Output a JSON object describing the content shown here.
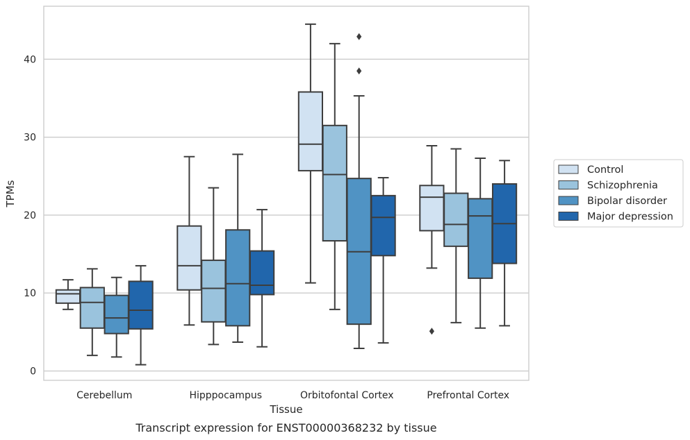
{
  "caption": "Transcript expression for ENST00000368232 by tissue",
  "chart_data": {
    "type": "box",
    "xlabel": "Tissue",
    "ylabel": "TPMs",
    "ylim": [
      -1.2,
      46.8
    ],
    "yticks": [
      0,
      10,
      20,
      30,
      40
    ],
    "grid": "horizontal",
    "legend_position": "right",
    "categories": [
      "Cerebellum",
      "Hipppocampus",
      "Orbitofontal Cortex",
      "Prefrontal Cortex"
    ],
    "series": [
      {
        "name": "Control",
        "color": "#d1e2f2",
        "boxes": [
          {
            "whisker_low": 7.9,
            "q1": 8.7,
            "median": 9.9,
            "q3": 10.4,
            "whisker_high": 11.7,
            "outliers": []
          },
          {
            "whisker_low": 5.9,
            "q1": 10.4,
            "median": 13.5,
            "q3": 18.6,
            "whisker_high": 27.5,
            "outliers": []
          },
          {
            "whisker_low": 11.3,
            "q1": 25.7,
            "median": 29.1,
            "q3": 35.8,
            "whisker_high": 44.5,
            "outliers": []
          },
          {
            "whisker_low": 13.2,
            "q1": 18.0,
            "median": 22.3,
            "q3": 23.8,
            "whisker_high": 28.9,
            "outliers": [
              5.1
            ]
          }
        ]
      },
      {
        "name": "Schizophrenia",
        "color": "#9ac3dd",
        "boxes": [
          {
            "whisker_low": 2.0,
            "q1": 5.5,
            "median": 8.8,
            "q3": 10.7,
            "whisker_high": 13.1,
            "outliers": []
          },
          {
            "whisker_low": 3.4,
            "q1": 6.3,
            "median": 10.6,
            "q3": 14.2,
            "whisker_high": 23.5,
            "outliers": []
          },
          {
            "whisker_low": 7.9,
            "q1": 16.7,
            "median": 25.2,
            "q3": 31.5,
            "whisker_high": 42.0,
            "outliers": []
          },
          {
            "whisker_low": 6.2,
            "q1": 16.0,
            "median": 18.8,
            "q3": 22.8,
            "whisker_high": 28.5,
            "outliers": []
          }
        ]
      },
      {
        "name": "Bipolar disorder",
        "color": "#5093c4",
        "boxes": [
          {
            "whisker_low": 1.8,
            "q1": 4.8,
            "median": 6.8,
            "q3": 9.7,
            "whisker_high": 12.0,
            "outliers": []
          },
          {
            "whisker_low": 3.7,
            "q1": 5.8,
            "median": 11.2,
            "q3": 18.1,
            "whisker_high": 27.8,
            "outliers": []
          },
          {
            "whisker_low": 2.9,
            "q1": 6.0,
            "median": 15.3,
            "q3": 24.7,
            "whisker_high": 35.3,
            "outliers": [
              42.9,
              38.5
            ]
          },
          {
            "whisker_low": 5.5,
            "q1": 11.9,
            "median": 19.9,
            "q3": 22.1,
            "whisker_high": 27.3,
            "outliers": []
          }
        ]
      },
      {
        "name": "Major depression",
        "color": "#2166ac",
        "boxes": [
          {
            "whisker_low": 0.8,
            "q1": 5.4,
            "median": 7.8,
            "q3": 11.5,
            "whisker_high": 13.5,
            "outliers": []
          },
          {
            "whisker_low": 3.1,
            "q1": 9.8,
            "median": 11.0,
            "q3": 15.4,
            "whisker_high": 20.7,
            "outliers": []
          },
          {
            "whisker_low": 3.6,
            "q1": 14.8,
            "median": 19.7,
            "q3": 22.5,
            "whisker_high": 24.8,
            "outliers": []
          },
          {
            "whisker_low": 5.8,
            "q1": 13.8,
            "median": 18.9,
            "q3": 24.0,
            "whisker_high": 27.0,
            "outliers": []
          }
        ]
      }
    ]
  }
}
